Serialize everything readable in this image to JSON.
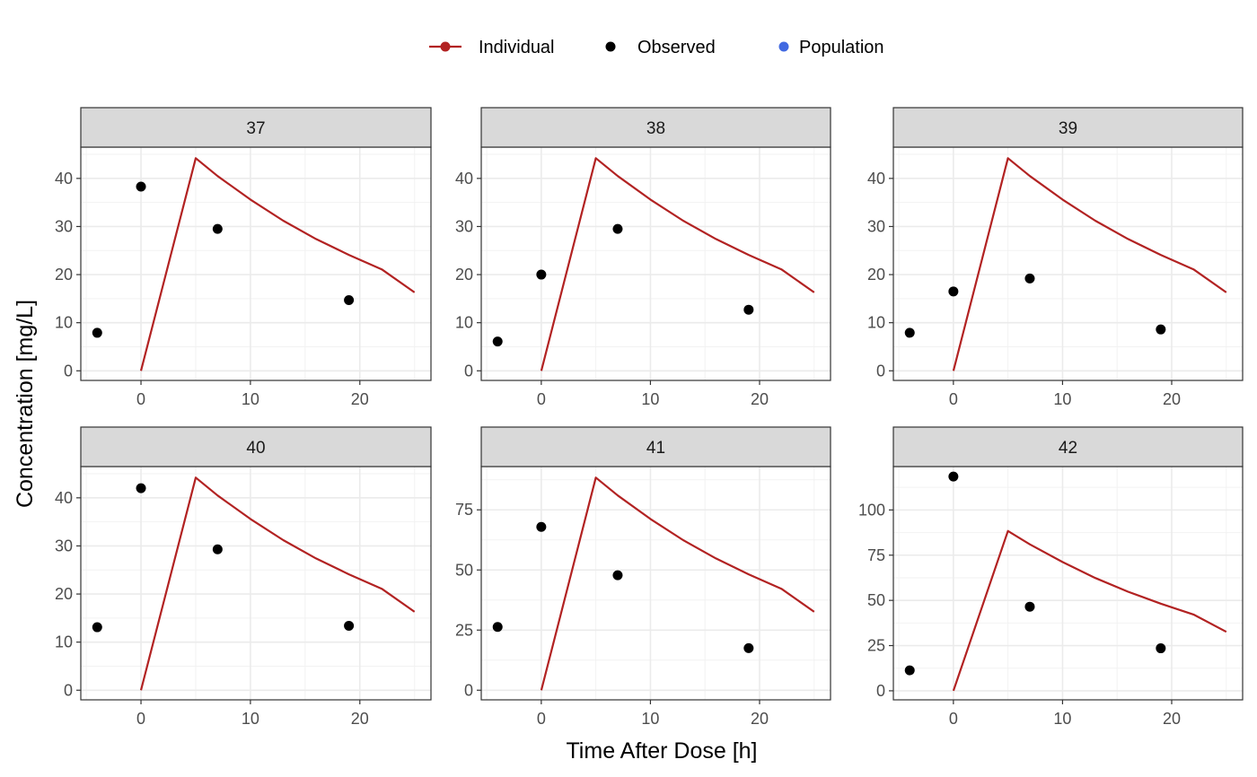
{
  "chart_data": {
    "type": "line",
    "xlabel": "Time After Dose [h]",
    "ylabel": "Concentration [mg/L]",
    "legend": {
      "placement": "top",
      "entries": [
        {
          "name": "Individual",
          "color": "#B22222",
          "kind": "line-point"
        },
        {
          "name": "Observed",
          "color": "#000000",
          "kind": "point"
        },
        {
          "name": "Population",
          "color": "#4169E1",
          "kind": "point"
        }
      ]
    },
    "grid": true,
    "facets": [
      {
        "label": "37",
        "xlim": [
          -5.5,
          26.5
        ],
        "ylim": [
          -2,
          46.5
        ],
        "xticks": [
          0,
          10,
          20
        ],
        "yticks": [
          0,
          10,
          20,
          30,
          40
        ],
        "individual": {
          "x": [
            0,
            5,
            7,
            10,
            13,
            16,
            19,
            22,
            25
          ],
          "y": [
            0,
            44.2,
            40.5,
            35.6,
            31.2,
            27.4,
            24.1,
            21.1,
            16.3
          ]
        },
        "observed": {
          "x": [
            -4,
            0,
            7,
            19
          ],
          "y": [
            7.9,
            38.3,
            29.5,
            14.7
          ]
        }
      },
      {
        "label": "38",
        "xlim": [
          -5.5,
          26.5
        ],
        "ylim": [
          -2,
          46.5
        ],
        "xticks": [
          0,
          10,
          20
        ],
        "yticks": [
          0,
          10,
          20,
          30,
          40
        ],
        "individual": {
          "x": [
            0,
            5,
            7,
            10,
            13,
            16,
            19,
            22,
            25
          ],
          "y": [
            0,
            44.2,
            40.5,
            35.6,
            31.2,
            27.4,
            24.1,
            21.1,
            16.3
          ]
        },
        "observed": {
          "x": [
            -4,
            0,
            7,
            19
          ],
          "y": [
            6.1,
            20.0,
            29.5,
            12.7
          ]
        }
      },
      {
        "label": "39",
        "xlim": [
          -5.5,
          26.5
        ],
        "ylim": [
          -2,
          46.5
        ],
        "xticks": [
          0,
          10,
          20
        ],
        "yticks": [
          0,
          10,
          20,
          30,
          40
        ],
        "individual": {
          "x": [
            0,
            5,
            7,
            10,
            13,
            16,
            19,
            22,
            25
          ],
          "y": [
            0,
            44.2,
            40.5,
            35.6,
            31.2,
            27.4,
            24.1,
            21.1,
            16.3
          ]
        },
        "observed": {
          "x": [
            -4,
            0,
            7,
            19
          ],
          "y": [
            7.9,
            16.5,
            19.2,
            8.6
          ]
        }
      },
      {
        "label": "40",
        "xlim": [
          -5.5,
          26.5
        ],
        "ylim": [
          -2,
          46.5
        ],
        "xticks": [
          0,
          10,
          20
        ],
        "yticks": [
          0,
          10,
          20,
          30,
          40
        ],
        "individual": {
          "x": [
            0,
            5,
            7,
            10,
            13,
            16,
            19,
            22,
            25
          ],
          "y": [
            0,
            44.2,
            40.5,
            35.6,
            31.2,
            27.4,
            24.1,
            21.1,
            16.3
          ]
        },
        "observed": {
          "x": [
            -4,
            0,
            7,
            19
          ],
          "y": [
            13.1,
            42.0,
            29.3,
            13.4
          ]
        }
      },
      {
        "label": "41",
        "xlim": [
          -5.5,
          26.5
        ],
        "ylim": [
          -4,
          93
        ],
        "xticks": [
          0,
          10,
          20
        ],
        "yticks": [
          0,
          25,
          50,
          75
        ],
        "individual": {
          "x": [
            0,
            5,
            7,
            10,
            13,
            16,
            19,
            22,
            25
          ],
          "y": [
            0,
            88.4,
            81.0,
            71.2,
            62.4,
            54.8,
            48.2,
            42.2,
            32.6
          ]
        },
        "observed": {
          "x": [
            -4,
            0,
            7,
            19
          ],
          "y": [
            26.3,
            67.9,
            47.8,
            17.5
          ]
        }
      },
      {
        "label": "42",
        "xlim": [
          -5.5,
          26.5
        ],
        "ylim": [
          -5,
          124
        ],
        "xticks": [
          0,
          10,
          20
        ],
        "yticks": [
          0,
          25,
          50,
          75,
          100
        ],
        "individual": {
          "x": [
            0,
            5,
            7,
            10,
            13,
            16,
            19,
            22,
            25
          ],
          "y": [
            0,
            88.4,
            81.0,
            71.2,
            62.4,
            54.8,
            48.2,
            42.2,
            32.6
          ]
        },
        "observed": {
          "x": [
            -4,
            0,
            7,
            19
          ],
          "y": [
            11.3,
            118.5,
            46.5,
            23.5
          ]
        }
      }
    ]
  }
}
